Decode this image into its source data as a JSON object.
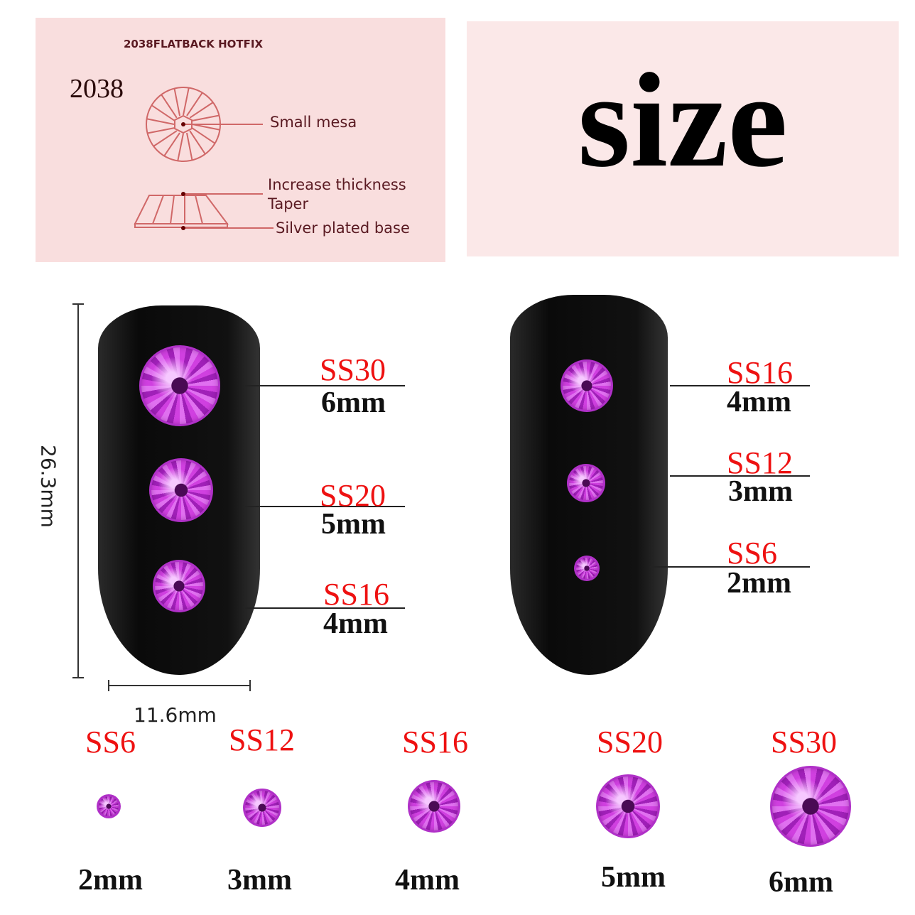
{
  "diagram": {
    "heading": "2038FLATBACK HOTFIX",
    "model": "2038",
    "labels": [
      "Small mesa",
      "Increase thickness",
      "Taper",
      "Silver plated base"
    ]
  },
  "title": "size",
  "dimensions": {
    "height": "26.3mm",
    "width": "11.6mm"
  },
  "left_nail": [
    {
      "code": "SS30",
      "size": "6mm"
    },
    {
      "code": "SS20",
      "size": "5mm"
    },
    {
      "code": "SS16",
      "size": "4mm"
    }
  ],
  "right_nail": [
    {
      "code": "SS16",
      "size": "4mm"
    },
    {
      "code": "SS12",
      "size": "3mm"
    },
    {
      "code": "SS6",
      "size": "2mm"
    }
  ],
  "size_row": [
    {
      "code": "SS6",
      "size": "2mm"
    },
    {
      "code": "SS12",
      "size": "3mm"
    },
    {
      "code": "SS16",
      "size": "4mm"
    },
    {
      "code": "SS20",
      "size": "5mm"
    },
    {
      "code": "SS30",
      "size": "6mm"
    }
  ],
  "colors": {
    "code_text": "#ee1111",
    "stone": "#c030d0",
    "nail": "#111111",
    "panel": "#f9dede"
  }
}
